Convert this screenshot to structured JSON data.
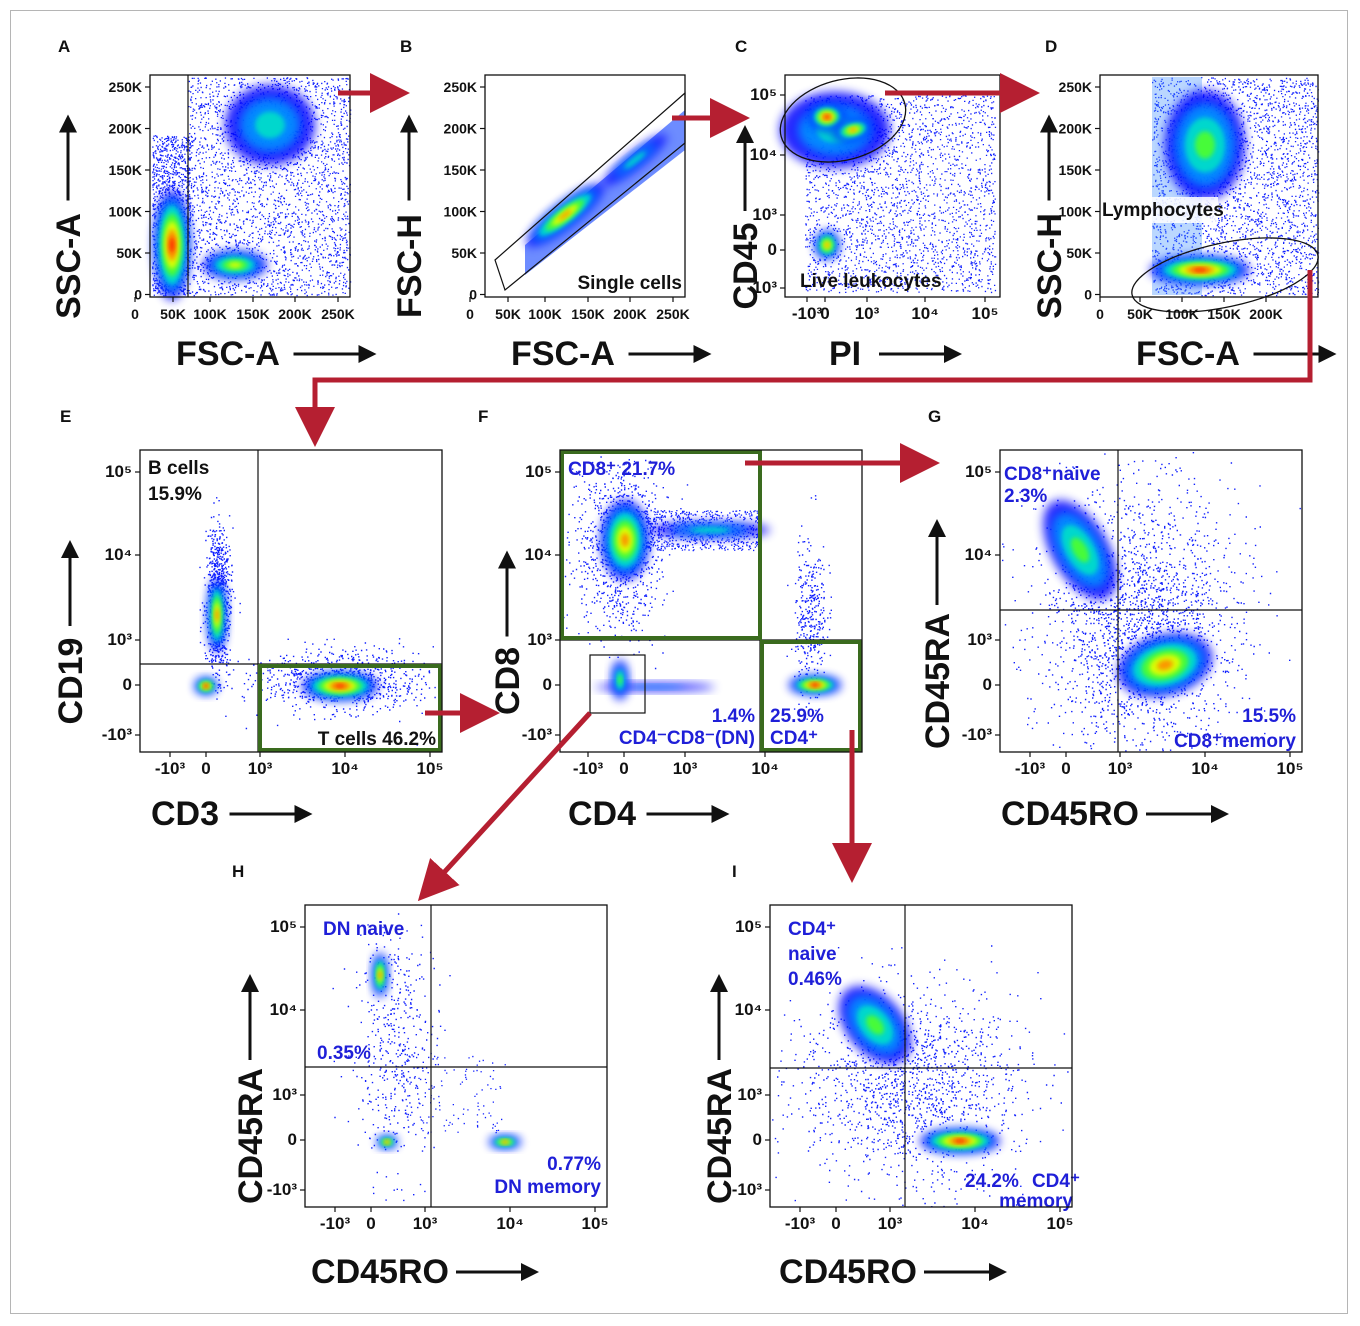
{
  "colors": {
    "arrow": "#b51f31",
    "gate_green": "#3a6b1e",
    "blue_text": "#1f1fd8",
    "dark": "#111111",
    "density": [
      "#0000ff",
      "#0094ff",
      "#00e0c8",
      "#4fff2a",
      "#e8ff00",
      "#ff8c00",
      "#ff1c00"
    ]
  },
  "panels": [
    {
      "id": "A",
      "label": "A",
      "xlabel": "FSC-A",
      "ylabel": "SSC-A",
      "xticks": [
        "0",
        "50K",
        "100K",
        "150K",
        "200K",
        "250K"
      ],
      "yticks": [
        "250K",
        "200K",
        "150K",
        "100K",
        "50K",
        "0"
      ],
      "gates": []
    },
    {
      "id": "B",
      "label": "B",
      "xlabel": "FSC-A",
      "ylabel": "FSC-H",
      "xticks": [
        "0",
        "50K",
        "100K",
        "150K",
        "200K",
        "250K"
      ],
      "yticks": [
        "250K",
        "200K",
        "150K",
        "100K",
        "50K",
        "0"
      ],
      "gates": [
        {
          "text": "Single cells"
        }
      ]
    },
    {
      "id": "C",
      "label": "C",
      "xlabel": "PI",
      "ylabel": "CD45",
      "xticks": [
        "-10³",
        "0",
        "10³",
        "10⁴",
        "10⁵"
      ],
      "yticks": [
        "10⁵",
        "10⁴",
        "10³",
        "0",
        "-10³"
      ],
      "gates": [
        {
          "text": "Live leukocytes"
        }
      ]
    },
    {
      "id": "D",
      "label": "D",
      "xlabel": "FSC-A",
      "ylabel": "SSC-H",
      "xticks": [
        "0",
        "50K",
        "100K",
        "150K",
        "200K"
      ],
      "yticks": [
        "250K",
        "200K",
        "150K",
        "100K",
        "50K",
        "0"
      ],
      "gates": [
        {
          "text": "Lymphocytes"
        }
      ]
    },
    {
      "id": "E",
      "label": "E",
      "xlabel": "CD3",
      "ylabel": "CD19",
      "xticks": [
        "-10³",
        "0",
        "10³",
        "10⁴",
        "10⁵"
      ],
      "yticks": [
        "10⁵",
        "10⁴",
        "10³",
        "0",
        "-10³"
      ],
      "gates": [
        {
          "text": "B cells",
          "pct": "15.9%"
        },
        {
          "text": "T cells 46.2%"
        }
      ]
    },
    {
      "id": "F",
      "label": "F",
      "xlabel": "CD4",
      "ylabel": "CD8",
      "xticks": [
        "-10³",
        "0",
        "10³",
        "10⁴"
      ],
      "yticks": [
        "10⁵",
        "10⁴",
        "10³",
        "0",
        "-10³"
      ],
      "gates": [
        {
          "text": "CD8⁺ 21.7%"
        },
        {
          "pct": "1.4%",
          "text": "CD4⁻CD8⁻(DN)"
        },
        {
          "pct": "25.9%",
          "text": "CD4⁺"
        }
      ]
    },
    {
      "id": "G",
      "label": "G",
      "xlabel": "CD45RO",
      "ylabel": "CD45RA",
      "xticks": [
        "-10³",
        "0",
        "10³",
        "10⁴",
        "10⁵"
      ],
      "yticks": [
        "10⁵",
        "10⁴",
        "10³",
        "0",
        "-10³"
      ],
      "gates": [
        {
          "text": "CD8⁺naive",
          "pct": "2.3%"
        },
        {
          "pct": "15.5%",
          "text": "CD8⁺memory"
        }
      ]
    },
    {
      "id": "H",
      "label": "H",
      "xlabel": "CD45RO",
      "ylabel": "CD45RA",
      "xticks": [
        "-10³",
        "0",
        "10³",
        "10⁴",
        "10⁵"
      ],
      "yticks": [
        "10⁵",
        "10⁴",
        "10³",
        "0",
        "-10³"
      ],
      "gates": [
        {
          "text": "DN naive",
          "pct": "0.35%"
        },
        {
          "pct": "0.77%",
          "text": "DN memory"
        }
      ]
    },
    {
      "id": "I",
      "label": "I",
      "xlabel": "CD45RO",
      "ylabel": "CD45RA",
      "xticks": [
        "-10³",
        "0",
        "10³",
        "10⁴",
        "10⁵"
      ],
      "yticks": [
        "10⁵",
        "10⁴",
        "10³",
        "0",
        "-10³"
      ],
      "gates": [
        {
          "text": "CD4⁺",
          "text2": "naive",
          "pct": "0.46%"
        },
        {
          "pct": "24.2%",
          "text": "CD4⁺",
          "text2": "memory"
        }
      ]
    }
  ],
  "chart_data": [
    {
      "type": "scatter",
      "panel": "A",
      "title": "",
      "xlabel": "FSC-A",
      "ylabel": "SSC-A",
      "xlim": [
        0,
        270000
      ],
      "ylim": [
        0,
        270000
      ],
      "populations": [
        {
          "x": 45000,
          "y": 40000,
          "density": "high"
        },
        {
          "x": 120000,
          "y": 30000,
          "density": "medium"
        },
        {
          "x": 140000,
          "y": 185000,
          "density": "low"
        }
      ]
    },
    {
      "type": "scatter",
      "panel": "B",
      "xlabel": "FSC-A",
      "ylabel": "FSC-H",
      "xlim": [
        0,
        270000
      ],
      "ylim": [
        0,
        270000
      ],
      "gate": "Single cells",
      "populations": [
        {
          "x": 120000,
          "y": 100000,
          "density": "high"
        }
      ]
    },
    {
      "type": "scatter",
      "panel": "C",
      "xlabel": "PI",
      "ylabel": "CD45",
      "scale": "biexponential",
      "gate": "Live leukocytes",
      "populations": [
        {
          "x": 0,
          "y": 40000,
          "density": "high"
        },
        {
          "x": 500,
          "y": 25000,
          "density": "high"
        },
        {
          "x": 0,
          "y": 0,
          "density": "medium"
        }
      ]
    },
    {
      "type": "scatter",
      "panel": "D",
      "xlabel": "FSC-A",
      "ylabel": "SSC-H",
      "xlim": [
        0,
        250000
      ],
      "ylim": [
        0,
        270000
      ],
      "gate": "Lymphocytes",
      "populations": [
        {
          "x": 120000,
          "y": 28000,
          "density": "high"
        },
        {
          "x": 140000,
          "y": 170000,
          "density": "medium"
        }
      ]
    },
    {
      "type": "scatter",
      "panel": "E",
      "xlabel": "CD3",
      "ylabel": "CD19",
      "scale": "biexponential",
      "gates": [
        {
          "name": "B cells",
          "percent": 15.9
        },
        {
          "name": "T cells",
          "percent": 46.2
        }
      ]
    },
    {
      "type": "scatter",
      "panel": "F",
      "xlabel": "CD4",
      "ylabel": "CD8",
      "scale": "biexponential",
      "gates": [
        {
          "name": "CD8+",
          "percent": 21.7
        },
        {
          "name": "CD4-CD8- (DN)",
          "percent": 1.4
        },
        {
          "name": "CD4+",
          "percent": 25.9
        }
      ]
    },
    {
      "type": "scatter",
      "panel": "G",
      "xlabel": "CD45RO",
      "ylabel": "CD45RA",
      "scale": "biexponential",
      "gates": [
        {
          "name": "CD8+ naive",
          "percent": 2.3
        },
        {
          "name": "CD8+ memory",
          "percent": 15.5
        }
      ]
    },
    {
      "type": "scatter",
      "panel": "H",
      "xlabel": "CD45RO",
      "ylabel": "CD45RA",
      "scale": "biexponential",
      "gates": [
        {
          "name": "DN naive",
          "percent": 0.35
        },
        {
          "name": "DN memory",
          "percent": 0.77
        }
      ]
    },
    {
      "type": "scatter",
      "panel": "I",
      "xlabel": "CD45RO",
      "ylabel": "CD45RA",
      "scale": "biexponential",
      "gates": [
        {
          "name": "CD4+ naive",
          "percent": 0.46
        },
        {
          "name": "CD4+ memory",
          "percent": 24.2
        }
      ]
    }
  ]
}
